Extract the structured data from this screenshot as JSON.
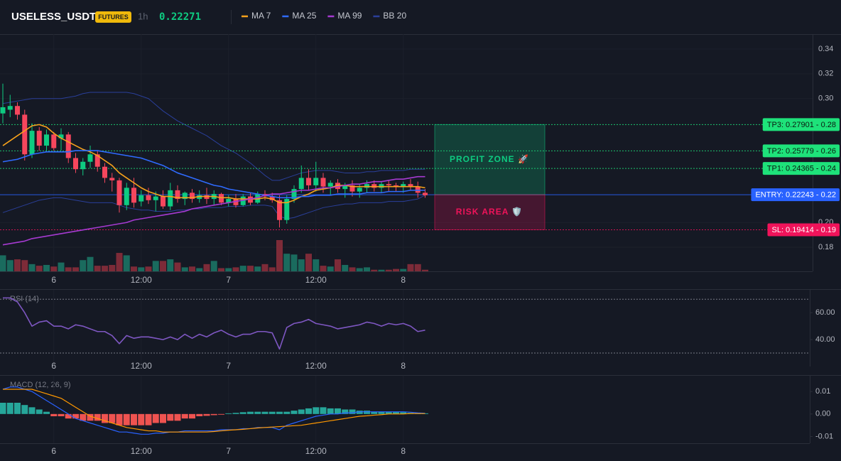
{
  "header": {
    "symbol": "USELESS_USDT",
    "badge": "FUTURES",
    "interval": "1h",
    "price": 0.22271
  },
  "chart_data": [
    {
      "type": "candlestick",
      "categories": [
        null,
        null,
        null,
        null,
        null,
        null,
        null,
        "6",
        null,
        null,
        null,
        null,
        null,
        null,
        null,
        null,
        null,
        null,
        null,
        "12:00",
        null,
        null,
        null,
        null,
        null,
        null,
        null,
        null,
        null,
        null,
        null,
        "7",
        null,
        null,
        null,
        null,
        null,
        null,
        null,
        null,
        null,
        null,
        null,
        "12:00",
        null,
        null,
        null,
        null,
        null,
        null,
        null,
        null,
        null,
        null,
        null,
        "8",
        null,
        null,
        null
      ],
      "open": [
        0.288,
        0.291,
        0.294,
        0.287,
        0.255,
        0.274,
        0.262,
        0.271,
        0.268,
        0.271,
        0.252,
        0.243,
        0.249,
        0.255,
        0.245,
        0.236,
        0.234,
        0.214,
        0.228,
        0.217,
        0.222,
        0.218,
        0.221,
        0.213,
        0.226,
        0.219,
        0.224,
        0.219,
        0.222,
        0.219,
        0.223,
        0.216,
        0.219,
        0.214,
        0.221,
        0.216,
        0.223,
        0.221,
        0.218,
        0.202,
        0.219,
        0.227,
        0.236,
        0.23,
        0.236,
        0.229,
        0.232,
        0.227,
        0.23,
        0.225,
        0.228,
        0.231,
        0.228,
        0.231,
        0.23,
        0.229,
        0.231,
        0.229,
        0.224
      ],
      "high": [
        0.312,
        0.303,
        0.297,
        0.291,
        0.28,
        0.277,
        0.275,
        0.273,
        0.276,
        0.273,
        0.256,
        0.252,
        0.262,
        0.258,
        0.248,
        0.24,
        0.236,
        0.232,
        0.236,
        0.226,
        0.228,
        0.225,
        0.226,
        0.232,
        0.23,
        0.225,
        0.227,
        0.226,
        0.228,
        0.226,
        0.224,
        0.222,
        0.223,
        0.223,
        0.224,
        0.225,
        0.226,
        0.224,
        0.222,
        0.222,
        0.23,
        0.246,
        0.243,
        0.249,
        0.24,
        0.234,
        0.235,
        0.232,
        0.234,
        0.231,
        0.234,
        0.234,
        0.233,
        0.234,
        0.232,
        0.233,
        0.235,
        0.233,
        0.227
      ],
      "low": [
        0.28,
        0.285,
        0.283,
        0.25,
        0.252,
        0.258,
        0.258,
        0.258,
        0.258,
        0.248,
        0.24,
        0.238,
        0.244,
        0.241,
        0.232,
        0.225,
        0.208,
        0.21,
        0.212,
        0.213,
        0.215,
        0.209,
        0.211,
        0.21,
        0.216,
        0.214,
        0.216,
        0.216,
        0.215,
        0.214,
        0.214,
        0.213,
        0.212,
        0.213,
        0.214,
        0.215,
        0.218,
        0.216,
        0.196,
        0.199,
        0.216,
        0.224,
        0.226,
        0.225,
        0.224,
        0.222,
        0.224,
        0.22,
        0.221,
        0.22,
        0.224,
        0.225,
        0.224,
        0.225,
        0.225,
        0.224,
        0.226,
        0.22,
        0.22
      ],
      "close": [
        0.293,
        0.294,
        0.287,
        0.255,
        0.274,
        0.262,
        0.271,
        0.26,
        0.271,
        0.252,
        0.243,
        0.249,
        0.255,
        0.245,
        0.236,
        0.234,
        0.214,
        0.228,
        0.216,
        0.222,
        0.218,
        0.221,
        0.213,
        0.226,
        0.219,
        0.224,
        0.219,
        0.222,
        0.219,
        0.223,
        0.216,
        0.219,
        0.214,
        0.221,
        0.216,
        0.223,
        0.221,
        0.218,
        0.202,
        0.219,
        0.227,
        0.236,
        0.23,
        0.236,
        0.229,
        0.232,
        0.227,
        0.23,
        0.225,
        0.228,
        0.231,
        0.228,
        0.231,
        0.23,
        0.229,
        0.231,
        0.229,
        0.224,
        0.222
      ],
      "volume": [
        40,
        28,
        30,
        28,
        18,
        14,
        16,
        12,
        22,
        10,
        10,
        28,
        36,
        14,
        14,
        16,
        46,
        40,
        12,
        10,
        12,
        26,
        26,
        30,
        22,
        10,
        12,
        8,
        18,
        26,
        8,
        8,
        10,
        14,
        14,
        12,
        18,
        10,
        78,
        44,
        42,
        30,
        44,
        30,
        14,
        12,
        30,
        16,
        10,
        8,
        10,
        4,
        4,
        4,
        6,
        6,
        18,
        18,
        4
      ],
      "up_color": "#0ecb81",
      "down_color": "#f6465d",
      "volume_up_color": "#1a6b5e",
      "volume_down_color": "#7d2b38",
      "series": [
        {
          "name": "MA 7",
          "color": "#f7a21b",
          "values": [
            0.262,
            0.266,
            0.27,
            0.274,
            0.278,
            0.279,
            0.277,
            0.272,
            0.268,
            0.265,
            0.262,
            0.259,
            0.257,
            0.254,
            0.25,
            0.246,
            0.24,
            0.236,
            0.232,
            0.228,
            0.225,
            0.223,
            0.221,
            0.221,
            0.22,
            0.22,
            0.22,
            0.221,
            0.221,
            0.221,
            0.22,
            0.22,
            0.219,
            0.219,
            0.219,
            0.219,
            0.22,
            0.219,
            0.216,
            0.216,
            0.218,
            0.221,
            0.223,
            0.226,
            0.227,
            0.228,
            0.23,
            0.23,
            0.229,
            0.229,
            0.229,
            0.229,
            0.229,
            0.229,
            0.229,
            0.229,
            0.229,
            0.229,
            0.228
          ]
        },
        {
          "name": "MA 25",
          "color": "#2f6bff",
          "values": [
            0.249,
            0.25,
            0.251,
            0.253,
            0.255,
            0.256,
            0.257,
            0.257,
            0.257,
            0.257,
            0.258,
            0.258,
            0.258,
            0.258,
            0.257,
            0.256,
            0.255,
            0.254,
            0.253,
            0.252,
            0.25,
            0.248,
            0.246,
            0.243,
            0.24,
            0.238,
            0.236,
            0.234,
            0.232,
            0.23,
            0.229,
            0.227,
            0.226,
            0.225,
            0.224,
            0.223,
            0.222,
            0.221,
            0.22,
            0.22,
            0.22,
            0.221,
            0.221,
            0.222,
            0.222,
            0.222,
            0.223,
            0.223,
            0.223,
            0.223,
            0.224,
            0.224,
            0.224,
            0.225,
            0.225,
            0.225,
            0.226,
            0.226,
            0.226
          ]
        },
        {
          "name": "MA 99",
          "color": "#a63ad1",
          "values": [
            0.182,
            0.183,
            0.184,
            0.185,
            0.187,
            0.188,
            0.189,
            0.19,
            0.191,
            0.192,
            0.193,
            0.194,
            0.195,
            0.196,
            0.197,
            0.198,
            0.199,
            0.2,
            0.202,
            0.203,
            0.204,
            0.205,
            0.206,
            0.207,
            0.208,
            0.209,
            0.211,
            0.212,
            0.213,
            0.214,
            0.215,
            0.216,
            0.217,
            0.218,
            0.219,
            0.22,
            0.222,
            0.223,
            0.223,
            0.224,
            0.225,
            0.226,
            0.226,
            0.227,
            0.228,
            0.228,
            0.229,
            0.23,
            0.231,
            0.231,
            0.232,
            0.233,
            0.233,
            0.234,
            0.235,
            0.235,
            0.236,
            0.237,
            0.237
          ]
        },
        {
          "name": "BB 20",
          "color": "#2a3f9a",
          "values": [
            0.296,
            0.297,
            0.298,
            0.299,
            0.3,
            0.3,
            0.3,
            0.3,
            0.3,
            0.301,
            0.302,
            0.304,
            0.305,
            0.305,
            0.305,
            0.305,
            0.305,
            0.305,
            0.304,
            0.302,
            0.3,
            0.295,
            0.29,
            0.286,
            0.282,
            0.279,
            0.276,
            0.273,
            0.27,
            0.266,
            0.262,
            0.259,
            0.256,
            0.252,
            0.248,
            0.243,
            0.238,
            0.234,
            0.234,
            0.236,
            0.238,
            0.24,
            0.241,
            0.242,
            0.242,
            0.242,
            0.241,
            0.24,
            0.24,
            0.24,
            0.241,
            0.241,
            0.242,
            0.242,
            0.242,
            0.242,
            0.243,
            0.243,
            0.243
          ],
          "lower": [
            0.208,
            0.21,
            0.212,
            0.214,
            0.216,
            0.218,
            0.219,
            0.22,
            0.22,
            0.219,
            0.218,
            0.217,
            0.216,
            0.216,
            0.216,
            0.216,
            0.214,
            0.212,
            0.211,
            0.21,
            0.21,
            0.209,
            0.209,
            0.209,
            0.21,
            0.21,
            0.211,
            0.211,
            0.212,
            0.212,
            0.212,
            0.213,
            0.213,
            0.213,
            0.214,
            0.214,
            0.214,
            0.213,
            0.205,
            0.203,
            0.204,
            0.206,
            0.208,
            0.21,
            0.212,
            0.213,
            0.214,
            0.215,
            0.215,
            0.216,
            0.216,
            0.216,
            0.216,
            0.217,
            0.217,
            0.217,
            0.218,
            0.219,
            0.222
          ]
        }
      ],
      "ylim": [
        0.1606,
        0.352
      ],
      "yticks": [
        0.34,
        0.32,
        {
          "value": 0.3,
          "label": "0.30"
        },
        {
          "value": 0.2,
          "label": "0.20"
        },
        0.18
      ],
      "grid": true,
      "levels": [
        {
          "label": "TP3: 0.27901 - 0.28",
          "value": 0.27901,
          "color": "#1ee27a"
        },
        {
          "label": "TP2: 0.25779 - 0.26",
          "value": 0.25779,
          "color": "#1ee27a"
        },
        {
          "label": "TP1: 0.24365 - 0.24",
          "value": 0.24365,
          "color": "#1ee27a"
        },
        {
          "label": "ENTRY: 0.22243 - 0.22",
          "value": 0.22243,
          "color": "#2962ff"
        },
        {
          "label": "SL: 0.19414 - 0.19",
          "value": 0.19414,
          "color": "#f0135a"
        }
      ],
      "zones": [
        {
          "label": "PROFIT ZONE 🚀",
          "range": [
            0.22243,
            0.27901
          ],
          "color": "#0ecb81"
        },
        {
          "label": "RISK AREA 🛡️",
          "range": [
            0.19414,
            0.22243
          ],
          "color": "#f0135a"
        }
      ]
    },
    {
      "type": "line",
      "title": "RSI (14)",
      "series": [
        {
          "color": "#7e57c2",
          "values": [
            71,
            71,
            68,
            60,
            50,
            53,
            54,
            50,
            50,
            48,
            51,
            50,
            48,
            46,
            46,
            43,
            37,
            43,
            41,
            42,
            42,
            41,
            40,
            42,
            40,
            44,
            41,
            44,
            42,
            45,
            47,
            44,
            42,
            44,
            44,
            46,
            46,
            45,
            33,
            49,
            52,
            53,
            55,
            52,
            51,
            50,
            48,
            49,
            50,
            51,
            53,
            52,
            50,
            52,
            51,
            52,
            50,
            46,
            47
          ]
        }
      ],
      "levels": [
        70,
        30
      ],
      "ylim": [
        20,
        77
      ],
      "yticks": [
        {
          "value": 60,
          "label": "60.00"
        },
        {
          "value": 40,
          "label": "40.00"
        }
      ]
    },
    {
      "type": "macd",
      "title": "MACD (12, 26, 9)",
      "histogram": [
        0.005,
        0.005,
        0.005,
        0.004,
        0.003,
        0.002,
        0.001,
        -0.001,
        -0.001,
        -0.002,
        -0.002,
        -0.003,
        -0.003,
        -0.003,
        -0.004,
        -0.004,
        -0.005,
        -0.005,
        -0.005,
        -0.005,
        -0.005,
        -0.004,
        -0.004,
        -0.003,
        -0.003,
        -0.002,
        -0.002,
        -0.001,
        -0.0008,
        -0.0005,
        -0.0003,
        0.0003,
        0.0005,
        0.0008,
        0.001,
        0.001,
        0.001,
        0.001,
        0.001,
        0.001,
        0.0015,
        0.002,
        0.0025,
        0.003,
        0.003,
        0.0025,
        0.0025,
        0.002,
        0.002,
        0.0015,
        0.0015,
        0.001,
        0.001,
        0.001,
        0.001,
        0.0008,
        0.0005,
        0.0003,
        0.0003
      ],
      "hist_up_color": "#26a69a",
      "hist_down_color": "#ef5350",
      "series": [
        {
          "color": "#2962ff",
          "values": [
            0.011,
            0.012,
            0.012,
            0.011,
            0.01,
            0.008,
            0.006,
            0.004,
            0.002,
            0.0,
            -0.002,
            -0.003,
            -0.004,
            -0.005,
            -0.006,
            -0.007,
            -0.008,
            -0.008,
            -0.0085,
            -0.009,
            -0.009,
            -0.0085,
            -0.0085,
            -0.008,
            -0.008,
            -0.0075,
            -0.0075,
            -0.0075,
            -0.0075,
            -0.0075,
            -0.007,
            -0.007,
            -0.007,
            -0.0065,
            -0.0065,
            -0.006,
            -0.006,
            -0.006,
            -0.007,
            -0.005,
            -0.004,
            -0.003,
            -0.002,
            -0.001,
            -0.0005,
            0.0,
            0.0,
            0.0005,
            0.0005,
            0.001,
            0.001,
            0.001,
            0.001,
            0.001,
            0.001,
            0.001,
            0.0008,
            0.0005,
            0.0003
          ]
        },
        {
          "color": "#ff9800",
          "values": [
            0.011,
            0.011,
            0.011,
            0.011,
            0.011,
            0.01,
            0.009,
            0.008,
            0.007,
            0.005,
            0.003,
            0.001,
            -0.001,
            -0.002,
            -0.003,
            -0.004,
            -0.005,
            -0.006,
            -0.0065,
            -0.007,
            -0.0075,
            -0.0075,
            -0.008,
            -0.008,
            -0.008,
            -0.008,
            -0.008,
            -0.008,
            -0.008,
            -0.0078,
            -0.0075,
            -0.0072,
            -0.007,
            -0.0068,
            -0.0065,
            -0.0062,
            -0.006,
            -0.0058,
            -0.0056,
            -0.0054,
            -0.0052,
            -0.005,
            -0.0045,
            -0.004,
            -0.0035,
            -0.003,
            -0.0025,
            -0.002,
            -0.0015,
            -0.001,
            -0.0008,
            -0.0005,
            -0.0003,
            0.0,
            0.0,
            0.0,
            0.0002,
            0.0002,
            0.0002
          ]
        }
      ],
      "ylim": [
        -0.013,
        0.017
      ],
      "yticks": [
        0.01,
        {
          "value": 0,
          "label": "0.00"
        },
        -0.01
      ]
    }
  ]
}
